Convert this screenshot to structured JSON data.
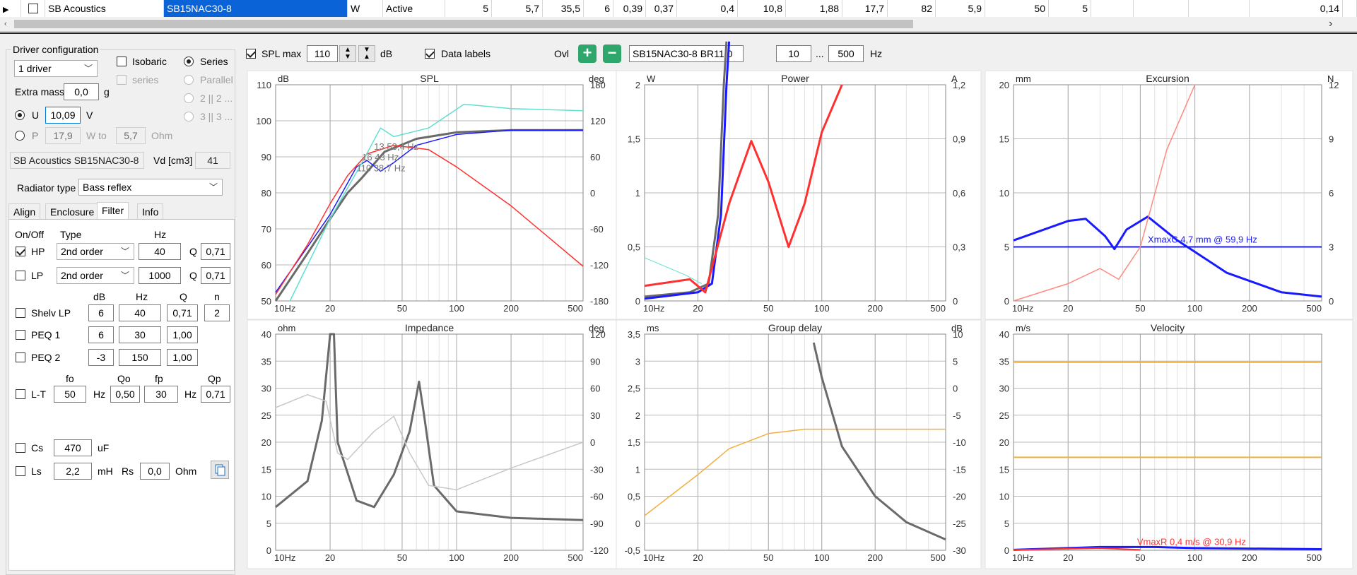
{
  "grid": {
    "cells": [
      "SB Acoustics",
      "SB15NAC30-8",
      "W",
      "Active",
      "5",
      "5,7",
      "35,5",
      "6",
      "0,39",
      "0,37",
      "0,4",
      "10,8",
      "1,88",
      "17,7",
      "82",
      "5,9",
      "50",
      "5",
      "",
      "",
      "",
      "0,14",
      ""
    ]
  },
  "driver_config": {
    "title": "Driver configuration",
    "count_select": "1 driver",
    "isobaric": "Isobaric",
    "series_sub": "series",
    "series": "Series",
    "parallel": "Parallel",
    "opt_2": "2 || 2 ...",
    "opt_3": "3 || 3 ...",
    "extra_mass_label": "Extra mass",
    "extra_mass_value": "0,0",
    "extra_mass_unit": "g",
    "u_label": "U",
    "u_value": "10,09",
    "u_unit": "V",
    "p_label": "P",
    "p_value": "17,9",
    "p_unit": "W to",
    "ohm_value": "5,7",
    "ohm_unit": "Ohm",
    "driver_name": "SB Acoustics SB15NAC30-8",
    "vd_label": "Vd [cm3]",
    "vd_value": "41"
  },
  "radiator": {
    "label": "Radiator type",
    "value": "Bass reflex"
  },
  "tabs": [
    "Align",
    "Enclosure",
    "Filter",
    "Info"
  ],
  "filter": {
    "h_onoff": "On/Off",
    "h_type": "Type",
    "h_hz": "Hz",
    "hp": {
      "label": "HP",
      "type": "2nd order",
      "hz": "40",
      "q_label": "Q",
      "q": "0,71"
    },
    "lp": {
      "label": "LP",
      "type": "2nd order",
      "hz": "1000",
      "q_label": "Q",
      "q": "0,71"
    },
    "h_db": "dB",
    "h_hz2": "Hz",
    "h_q": "Q",
    "h_n": "n",
    "shelv": {
      "label": "Shelv LP",
      "db": "6",
      "hz": "40",
      "q": "0,71",
      "n": "2"
    },
    "peq1": {
      "label": "PEQ 1",
      "db": "6",
      "hz": "30",
      "q": "1,00"
    },
    "peq2": {
      "label": "PEQ 2",
      "db": "-3",
      "hz": "150",
      "q": "1,00"
    },
    "h_fo": "fo",
    "h_qo": "Qo",
    "h_fp": "fp",
    "h_qp": "Qp",
    "lt": {
      "label": "L-T",
      "fo": "50",
      "hz1": "Hz",
      "qo": "0,50",
      "fp": "30",
      "hz2": "Hz",
      "qp": "0,71"
    },
    "cs": {
      "label": "Cs",
      "value": "470",
      "unit": "uF"
    },
    "ls": {
      "label": "Ls",
      "value": "2,2",
      "unit": "mH",
      "rs_label": "Rs",
      "rs": "0,0",
      "rs_unit": "Ohm"
    }
  },
  "toolbar": {
    "spl_max_label": "SPL max",
    "spl_max_value": "110",
    "db_unit": "dB",
    "data_labels": "Data labels",
    "ovl": "Ovl",
    "overlay_name": "SB15NAC30-8 BR11,0",
    "f_from": "10",
    "ellipsis": "...",
    "f_to": "500",
    "hz_unit": "Hz"
  },
  "charts": {
    "x_ticks": [
      "10Hz",
      "20",
      "50",
      "100",
      "200",
      "500"
    ],
    "spl": {
      "title": "SPL",
      "lu": "dB",
      "ru": "deg",
      "ly": [
        "110",
        "100",
        "90",
        "80",
        "70",
        "60",
        "50"
      ],
      "ry": [
        "180",
        "120",
        "60",
        "0",
        "-60",
        "-120",
        "-180"
      ],
      "labels": [
        "13 53,4 Hz",
        "16 43 Hz",
        "110 38,7 Hz"
      ]
    },
    "power": {
      "title": "Power",
      "lu": "W",
      "ru": "A",
      "ly": [
        "2",
        "1,5",
        "1",
        "0,5",
        "0"
      ],
      "ry": [
        "1,2",
        "0,9",
        "0,6",
        "0,3",
        "0"
      ]
    },
    "excursion": {
      "title": "Excursion",
      "lu": "mm",
      "ru": "N",
      "ly": [
        "20",
        "15",
        "10",
        "5",
        "0"
      ],
      "ry": [
        "12",
        "9",
        "6",
        "3",
        "0"
      ],
      "label": "XmaxC 4,7 mm @ 59,9 Hz"
    },
    "impedance": {
      "title": "Impedance",
      "lu": "ohm",
      "ru": "deg",
      "ly": [
        "40",
        "35",
        "30",
        "25",
        "20",
        "15",
        "10",
        "5",
        "0"
      ],
      "ry": [
        "120",
        "90",
        "60",
        "30",
        "0",
        "-30",
        "-60",
        "-90",
        "-120"
      ]
    },
    "group_delay": {
      "title": "Group delay",
      "lu": "ms",
      "ru": "dB",
      "ly": [
        "3,5",
        "3",
        "2,5",
        "2",
        "1,5",
        "1",
        "0,5",
        "0",
        "-0,5"
      ],
      "ry": [
        "10",
        "5",
        "0",
        "-5",
        "-10",
        "-15",
        "-20",
        "-25",
        "-30"
      ]
    },
    "velocity": {
      "title": "Velocity",
      "lu": "m/s",
      "ru": "",
      "ly": [
        "40",
        "35",
        "30",
        "25",
        "20",
        "15",
        "10",
        "5",
        "0"
      ],
      "ry": [],
      "label": "VmaxR 0,4 m/s @ 30,9 Hz"
    }
  },
  "colors": {
    "red": "#ff3030",
    "blue": "#1a1aff",
    "gray": "#6a6a6a",
    "cyan": "#5fe0d0",
    "orange": "#f0b040"
  }
}
